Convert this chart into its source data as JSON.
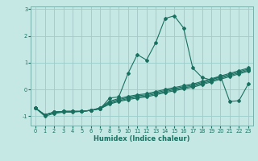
{
  "xlabel": "Humidex (Indice chaleur)",
  "bg_color": "#c5e8e5",
  "grid_color": "#9dcfcc",
  "line_color": "#1a7060",
  "spine_color": "#7ab0aa",
  "xlim": [
    -0.5,
    23.5
  ],
  "ylim": [
    -1.35,
    3.1
  ],
  "yticks": [
    -1,
    0,
    1,
    2,
    3
  ],
  "xticks": [
    0,
    1,
    2,
    3,
    4,
    5,
    6,
    7,
    8,
    9,
    10,
    11,
    12,
    13,
    14,
    15,
    16,
    17,
    18,
    19,
    20,
    21,
    22,
    23
  ],
  "lines": [
    {
      "x": [
        0,
        1,
        2,
        3,
        4,
        5,
        6,
        7,
        8,
        9,
        10,
        11,
        12,
        13,
        14,
        15,
        16,
        17,
        18,
        19,
        20,
        21,
        22,
        23
      ],
      "y": [
        -0.7,
        -1.0,
        -0.9,
        -0.85,
        -0.85,
        -0.82,
        -0.78,
        -0.72,
        -0.32,
        -0.28,
        0.6,
        1.3,
        1.1,
        1.75,
        2.65,
        2.75,
        2.3,
        0.8,
        0.45,
        0.35,
        0.5,
        -0.45,
        -0.42,
        0.2
      ]
    },
    {
      "x": [
        0,
        1,
        2,
        3,
        4,
        5,
        6,
        7,
        8,
        9,
        10,
        11,
        12,
        13,
        14,
        15,
        16,
        17,
        18,
        19,
        20,
        21,
        22,
        23
      ],
      "y": [
        -0.7,
        -0.95,
        -0.85,
        -0.82,
        -0.82,
        -0.82,
        -0.78,
        -0.72,
        -0.55,
        -0.45,
        -0.38,
        -0.32,
        -0.28,
        -0.2,
        -0.12,
        -0.05,
        0.02,
        0.08,
        0.18,
        0.28,
        0.38,
        0.48,
        0.58,
        0.68
      ]
    },
    {
      "x": [
        0,
        1,
        2,
        3,
        4,
        5,
        6,
        7,
        8,
        9,
        10,
        11,
        12,
        13,
        14,
        15,
        16,
        17,
        18,
        19,
        20,
        21,
        22,
        23
      ],
      "y": [
        -0.7,
        -0.95,
        -0.85,
        -0.82,
        -0.82,
        -0.82,
        -0.78,
        -0.72,
        -0.52,
        -0.42,
        -0.34,
        -0.28,
        -0.24,
        -0.16,
        -0.08,
        -0.01,
        0.06,
        0.12,
        0.22,
        0.32,
        0.42,
        0.52,
        0.62,
        0.72
      ]
    },
    {
      "x": [
        0,
        1,
        2,
        3,
        4,
        5,
        6,
        7,
        8,
        9,
        10,
        11,
        12,
        13,
        14,
        15,
        16,
        17,
        18,
        19,
        20,
        21,
        22,
        23
      ],
      "y": [
        -0.7,
        -0.95,
        -0.85,
        -0.82,
        -0.82,
        -0.82,
        -0.78,
        -0.7,
        -0.48,
        -0.38,
        -0.3,
        -0.24,
        -0.2,
        -0.12,
        -0.04,
        0.03,
        0.1,
        0.16,
        0.26,
        0.36,
        0.46,
        0.56,
        0.66,
        0.76
      ]
    },
    {
      "x": [
        0,
        1,
        2,
        3,
        4,
        5,
        6,
        7,
        8,
        9,
        10,
        11,
        12,
        13,
        14,
        15,
        16,
        17,
        18,
        19,
        20,
        21,
        22,
        23
      ],
      "y": [
        -0.7,
        -0.95,
        -0.85,
        -0.82,
        -0.82,
        -0.82,
        -0.78,
        -0.68,
        -0.44,
        -0.34,
        -0.26,
        -0.2,
        -0.16,
        -0.08,
        0.0,
        0.07,
        0.14,
        0.2,
        0.3,
        0.4,
        0.5,
        0.6,
        0.7,
        0.8
      ]
    }
  ]
}
